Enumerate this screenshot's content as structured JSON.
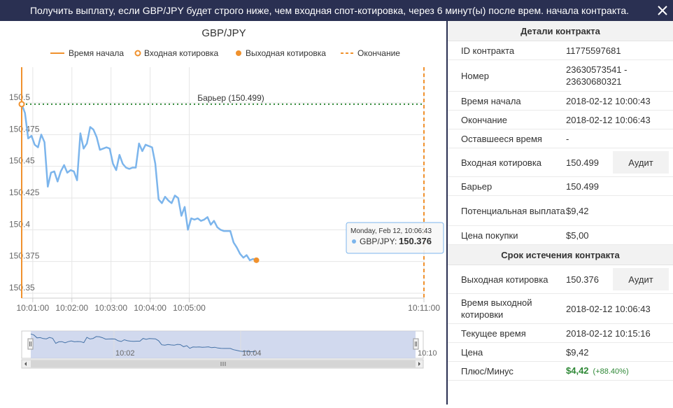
{
  "header": {
    "title": "Получить выплату, если GBP/JPY будет строго ниже, чем входная спот-котировка, через 6 минут(ы) после врем. начала контракта.",
    "close_icon": "close-icon"
  },
  "chart": {
    "title": "GBP/JPY",
    "legend": [
      {
        "label": "Время начала",
        "color": "#f0912d",
        "icon": "solid-line-icon"
      },
      {
        "label": "Входная котировка",
        "color": "#f0912d",
        "icon": "ring-marker-icon"
      },
      {
        "label": "Выходная котировка",
        "color": "#f0912d",
        "icon": "dot-marker-icon"
      },
      {
        "label": "Окончание",
        "color": "#f0912d",
        "icon": "dashed-line-icon"
      }
    ],
    "barrier_label": "Барьер (150.499)",
    "tooltip": {
      "date": "Monday, Feb 12, 10:06:43",
      "series": "GBP/JPY:",
      "value": "150.376"
    },
    "navigator_labels": [
      "10:02",
      "10:04",
      "10:10"
    ]
  },
  "chart_data": {
    "type": "line",
    "series": [
      {
        "name": "GBP/JPY",
        "x": [
          "10:00:43",
          "10:00:48",
          "10:00:53",
          "10:00:58",
          "10:01:03",
          "10:01:08",
          "10:01:13",
          "10:01:18",
          "10:01:23",
          "10:01:28",
          "10:01:33",
          "10:01:38",
          "10:01:43",
          "10:01:48",
          "10:01:53",
          "10:01:58",
          "10:02:03",
          "10:02:08",
          "10:02:13",
          "10:02:18",
          "10:02:23",
          "10:02:28",
          "10:02:33",
          "10:02:38",
          "10:02:43",
          "10:02:48",
          "10:02:53",
          "10:02:58",
          "10:03:03",
          "10:03:08",
          "10:03:13",
          "10:03:18",
          "10:03:23",
          "10:03:28",
          "10:03:33",
          "10:03:38",
          "10:03:43",
          "10:03:48",
          "10:03:53",
          "10:03:58",
          "10:04:03",
          "10:04:08",
          "10:04:13",
          "10:04:18",
          "10:04:23",
          "10:04:28",
          "10:04:33",
          "10:04:38",
          "10:04:43",
          "10:04:48",
          "10:04:53",
          "10:04:58",
          "10:05:03",
          "10:05:08",
          "10:05:13",
          "10:05:18",
          "10:05:23",
          "10:05:28",
          "10:05:33",
          "10:05:38",
          "10:05:43",
          "10:05:48",
          "10:05:53",
          "10:05:58",
          "10:06:03",
          "10:06:08",
          "10:06:13",
          "10:06:18",
          "10:06:23",
          "10:06:28",
          "10:06:33",
          "10:06:38",
          "10:06:43"
        ],
        "y": [
          150.499,
          150.492,
          150.472,
          150.474,
          150.467,
          150.465,
          150.475,
          150.469,
          150.434,
          150.445,
          150.446,
          150.438,
          150.446,
          150.451,
          150.445,
          150.447,
          150.446,
          150.439,
          150.476,
          150.464,
          150.468,
          150.481,
          150.479,
          150.473,
          150.463,
          150.464,
          150.465,
          150.464,
          150.452,
          150.447,
          150.459,
          150.452,
          150.449,
          150.448,
          150.449,
          150.449,
          150.468,
          150.462,
          150.467,
          150.466,
          150.465,
          150.452,
          150.424,
          150.421,
          150.426,
          150.423,
          150.421,
          150.427,
          150.425,
          150.411,
          150.418,
          150.4,
          150.409,
          150.408,
          150.409,
          150.407,
          150.408,
          150.41,
          150.404,
          150.407,
          150.402,
          150.4,
          150.399,
          150.399,
          150.399,
          150.39,
          150.386,
          150.381,
          150.378,
          150.38,
          150.376,
          150.377,
          150.376
        ]
      }
    ],
    "title": "GBP/JPY",
    "x_ticks": [
      "10:01:00",
      "10:02:00",
      "10:03:00",
      "10:04:00",
      "10:05:00",
      "10:11:00"
    ],
    "y_ticks": [
      "150.35",
      "150.375",
      "150.4",
      "150.425",
      "150.45",
      "150.475",
      "150.5"
    ],
    "ylim": [
      150.35,
      150.5
    ],
    "barrier": 150.499,
    "entry_spot": 150.499,
    "exit_spot": 150.376,
    "grid": true,
    "legend_position": "top"
  },
  "details": {
    "title": "Детали контракта",
    "rows": [
      {
        "label": "ID контракта",
        "value": "11775597681"
      },
      {
        "label": "Номер",
        "value": "23630573541 - 23630680321"
      },
      {
        "label": "Время начала",
        "value": "2018-02-12 10:00:43"
      },
      {
        "label": "Окончание",
        "value": "2018-02-12 10:06:43"
      },
      {
        "label": "Оставшееся время",
        "value": "-"
      },
      {
        "label": "Входная котировка",
        "value": "150.499",
        "button": "Аудит"
      },
      {
        "label": "Барьер",
        "value": "150.499"
      },
      {
        "label": "Потенциальная выплата",
        "value": "$9,42"
      },
      {
        "label": "Цена покупки",
        "value": "$5,00"
      }
    ]
  },
  "expiry": {
    "title": "Срок истечения контракта",
    "rows": [
      {
        "label": "Выходная котировка",
        "value": "150.376",
        "button": "Аудит"
      },
      {
        "label": "Время выходной котировки",
        "value": "2018-02-12 10:06:43"
      },
      {
        "label": "Текущее время",
        "value": "2018-02-12 10:15:16"
      },
      {
        "label": "Цена",
        "value": "$9,42"
      },
      {
        "label": "Плюс/Минус",
        "value": "$4,42",
        "extra": "(+88.40%)"
      }
    ]
  },
  "colors": {
    "header": "#2a3052",
    "line": "#7cb5ec",
    "marker": "#f0912d",
    "barrier": "#2e8836",
    "profit": "#2e8836"
  }
}
